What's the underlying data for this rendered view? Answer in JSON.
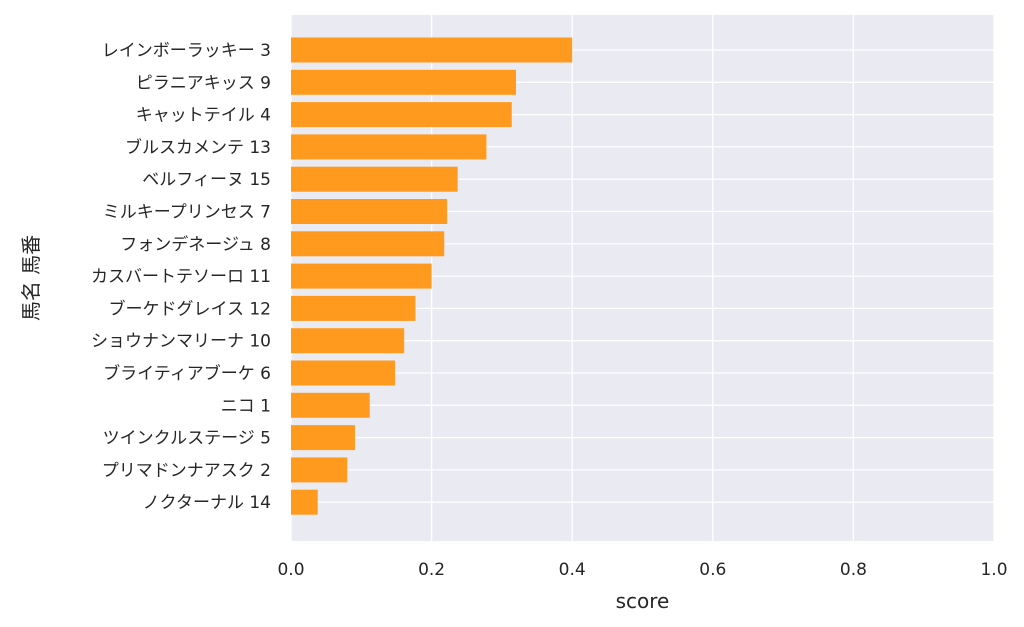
{
  "chart_data": {
    "type": "bar",
    "orientation": "horizontal",
    "xlabel": "score",
    "ylabel": "馬名 馬番",
    "xlim": [
      0,
      1.0
    ],
    "xticks": [
      "0.0",
      "0.2",
      "0.4",
      "0.6",
      "0.8",
      "1.0"
    ],
    "grid": true,
    "bar_color": "#ff9a1f",
    "background_color": "#eaeaf2",
    "categories": [
      "レインボーラッキー 3",
      "ピラニアキッス 9",
      "キャットテイル 4",
      "ブルスカメンテ 13",
      "ベルフィーヌ 15",
      "ミルキープリンセス 7",
      "フォンデネージュ 8",
      "カスバートテソーロ 11",
      "ブーケドグレイス 12",
      "ショウナンマリーナ 10",
      "ブライティアブーケ 6",
      "ニコ 1",
      "ツインクルステージ 5",
      "プリマドンナアスク 2",
      "ノクターナル 14"
    ],
    "values": [
      0.4,
      0.32,
      0.314,
      0.278,
      0.237,
      0.222,
      0.218,
      0.2,
      0.177,
      0.161,
      0.148,
      0.112,
      0.091,
      0.08,
      0.038
    ]
  }
}
